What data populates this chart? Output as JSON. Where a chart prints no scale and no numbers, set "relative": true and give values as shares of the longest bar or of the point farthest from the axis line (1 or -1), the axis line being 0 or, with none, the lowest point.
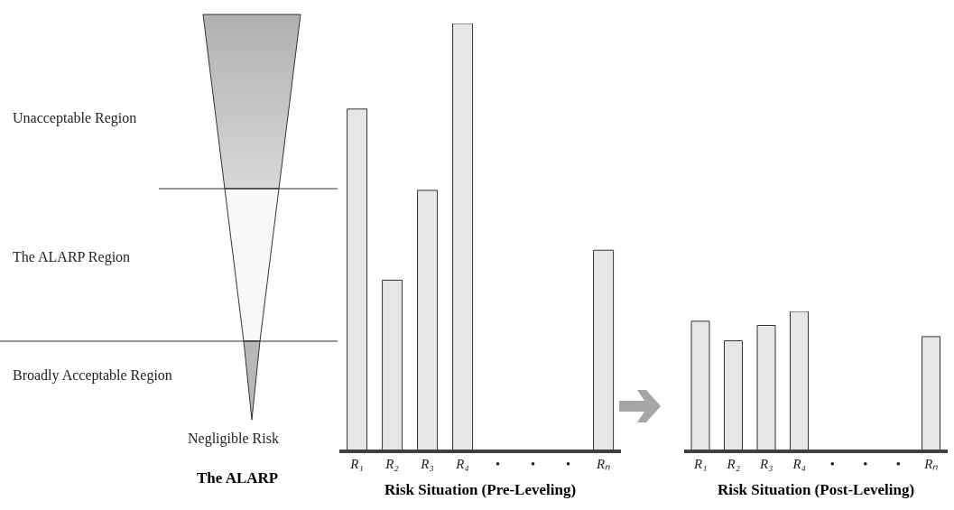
{
  "chart_data": [
    {
      "type": "other",
      "title": "The ALARP",
      "annotations": [
        "Unacceptable Region",
        "The ALARP Region",
        "Broadly Acceptable Region",
        "Negligible Risk"
      ]
    },
    {
      "type": "bar",
      "relative": true,
      "title": "Risk Situation (Pre-Leveling)",
      "categories": [
        "R₁",
        "R₂",
        "R₃",
        "R₄",
        "•",
        "•",
        "•",
        "Rₙ"
      ],
      "color": "#e6e6e6",
      "values": [
        0.8,
        0.4,
        0.61,
        1,
        null,
        null,
        null,
        0.47
      ]
    },
    {
      "type": "bar",
      "relative": true,
      "title": "Risk Situation (Post-Leveling)",
      "categories": [
        "R₁",
        "R₂",
        "R₃",
        "R₄",
        "•",
        "•",
        "•",
        "Rₙ"
      ],
      "color": "#e6e6e6",
      "values": [
        0.93,
        0.79,
        0.9,
        1,
        null,
        null,
        null,
        0.82
      ]
    }
  ]
}
